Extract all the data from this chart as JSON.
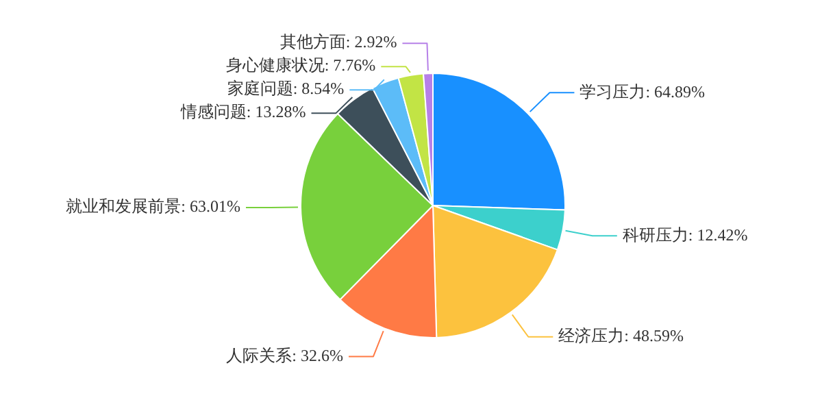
{
  "chart_data": {
    "type": "pie",
    "categories": [
      "学习压力",
      "科研压力",
      "经济压力",
      "人际关系",
      "就业和发展前景",
      "情感问题",
      "家庭问题",
      "身心健康状况",
      "其他方面"
    ],
    "values": [
      64.89,
      12.42,
      48.59,
      32.6,
      63.01,
      13.28,
      8.54,
      7.76,
      2.92
    ],
    "value_labels": [
      "64.89%",
      "12.42%",
      "48.59%",
      "32.6%",
      "63.01%",
      "13.28%",
      "8.54%",
      "7.76%",
      "2.92%"
    ],
    "colors": [
      "#1890ff",
      "#3cd0cc",
      "#fcc23e",
      "#ff7a45",
      "#78d03c",
      "#3d4f5a",
      "#5cbcf8",
      "#c2e445",
      "#b680e8"
    ],
    "legend": false
  }
}
